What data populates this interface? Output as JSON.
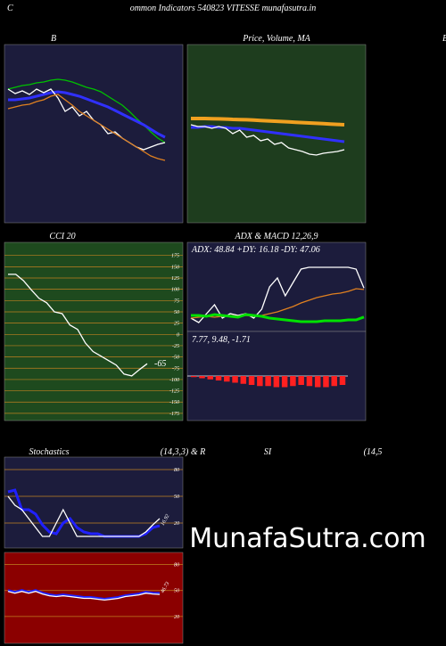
{
  "header": {
    "letter": "C",
    "title": "ommon  Indicators 540823 VITESSE munafasutra.in",
    "right_letter": "B",
    "watermark": "MunafaSutra.com"
  },
  "chart_data": [
    {
      "type": "line",
      "title": "B",
      "background": "#1c1c3c",
      "ylim": [
        0,
        100
      ],
      "series": [
        {
          "name": "ma-long",
          "color": "#00c000",
          "values": [
            75,
            76,
            77,
            77.5,
            78.5,
            79,
            80,
            80.5,
            80,
            79,
            77.5,
            76,
            75,
            73.5,
            71,
            68.5,
            66,
            62.5,
            58.5,
            55,
            51,
            47.5,
            45
          ]
        },
        {
          "name": "ma-mid",
          "color": "#3030ff",
          "values": [
            69,
            69,
            69.5,
            70,
            71,
            72,
            73,
            73.5,
            73,
            72,
            71,
            69.5,
            68,
            66.5,
            65,
            63,
            61,
            59,
            57,
            55,
            52.5,
            50,
            48
          ]
        },
        {
          "name": "price",
          "color": "#ffffff",
          "values": [
            75,
            72.5,
            74,
            72,
            75,
            73,
            75,
            70,
            62.5,
            65,
            60,
            62.5,
            57.5,
            55,
            50,
            51,
            47.5,
            45,
            42.5,
            41,
            42.5,
            44,
            45
          ]
        },
        {
          "name": "ma-short",
          "color": "#e08020",
          "values": [
            64,
            65,
            66,
            66.5,
            68,
            69,
            71,
            72,
            69,
            66,
            62.5,
            60,
            57.5,
            55,
            52.5,
            50,
            47.5,
            45,
            42.5,
            40,
            37.5,
            36,
            35
          ]
        }
      ]
    },
    {
      "type": "line",
      "title": "Price,  Volume,  MA",
      "background": "#1e3d1e",
      "ylim": [
        0,
        100
      ],
      "series": [
        {
          "name": "band-upper",
          "color": "#f0a020",
          "values": [
            58.5,
            58.5,
            58.5,
            58.4,
            58.3,
            58.2,
            58,
            57.9,
            57.8,
            57.6,
            57.4,
            57.2,
            57,
            56.8,
            56.6,
            56.4,
            56.2,
            56,
            55.8,
            55.6,
            55.4,
            55.2,
            55
          ]
        },
        {
          "name": "ma",
          "color": "#3030ff",
          "values": [
            53.5,
            53.5,
            54,
            54,
            53.5,
            53.5,
            53,
            53,
            52.5,
            52,
            51.5,
            51,
            50.5,
            50,
            49.5,
            49,
            48.5,
            48,
            47.5,
            47,
            46.5,
            46,
            45.5
          ]
        },
        {
          "name": "close",
          "color": "#ffffff",
          "values": [
            55,
            54,
            54,
            53,
            54,
            53,
            50,
            52,
            48,
            49,
            46,
            47,
            44,
            45,
            42,
            41,
            40,
            38.5,
            38,
            39,
            39.5,
            40,
            41
          ]
        }
      ]
    },
    {
      "type": "line",
      "title": "CCI 20",
      "background": "#1e4a1e",
      "ylim": [
        -191,
        204
      ],
      "yticks": [
        175,
        150,
        125,
        100,
        75,
        50,
        25,
        0,
        -25,
        -50,
        -75,
        -100,
        -125,
        -150,
        -175
      ],
      "grid": true,
      "series": [
        {
          "name": "cci",
          "color": "#ffffff",
          "values": [
            133,
            133,
            119,
            99,
            80,
            70,
            50,
            46,
            21,
            11,
            -19,
            -38,
            -48,
            -58,
            -68,
            -88,
            -92,
            -78,
            -65
          ]
        }
      ]
    },
    {
      "type": "line",
      "title": "ADX  & MACD 12,26,9",
      "subtitle": "ADX: 48.84  +DY: 16.18  -DY: 47.06",
      "background": "#1c1c3c",
      "ylim": [
        0,
        100
      ],
      "series": [
        {
          "name": "adx",
          "color": "#ffffff",
          "values": [
            15,
            10,
            20,
            30,
            15,
            20,
            18,
            20,
            15,
            25,
            50,
            60,
            40,
            55,
            70,
            72,
            72,
            72,
            72,
            72,
            72,
            70,
            48.84
          ]
        },
        {
          "name": "minus-dy",
          "color": "#e08020",
          "values": [
            15,
            16,
            17,
            16,
            17,
            18,
            17,
            18,
            17,
            18,
            20,
            22,
            25,
            28,
            32,
            35,
            38,
            40,
            42,
            43,
            45,
            48,
            47.06
          ]
        },
        {
          "name": "plus-dy",
          "color": "#00e000",
          "values": [
            18,
            18,
            17,
            19,
            18,
            17,
            16,
            19,
            18,
            17,
            15,
            14,
            13,
            12,
            11,
            11,
            11,
            12,
            12,
            12,
            13,
            13,
            16.18
          ]
        }
      ]
    },
    {
      "type": "bar",
      "title": "7.77,  9.48,  -1.71",
      "background": "#1c1c3c",
      "ylim": [
        -20,
        20
      ],
      "color": "#ff2020",
      "values": [
        -0.5,
        -1,
        -1.5,
        -2,
        -2.5,
        -3,
        -3.5,
        -4,
        -4.5,
        -4.5,
        -5,
        -5,
        -4.5,
        -4,
        -4.5,
        -5,
        -5,
        -4.5,
        -4
      ]
    },
    {
      "type": "line",
      "title": "Stochastics",
      "subtitle": "(14,3,3) & R",
      "background": "#1c1c3c",
      "ylim": [
        -8,
        94
      ],
      "yticks": [
        80,
        50,
        20
      ],
      "grid": true,
      "series": [
        {
          "name": "k",
          "color": "#2020ff",
          "values": [
            55,
            57,
            35,
            35,
            30,
            18,
            10,
            8,
            20,
            25,
            15,
            10,
            8,
            8,
            5,
            5,
            5,
            5,
            5,
            5,
            8,
            15,
            16.92
          ]
        },
        {
          "name": "d",
          "color": "#ffffff",
          "values": [
            50,
            40,
            35,
            25,
            15,
            5,
            5,
            20,
            35,
            20,
            5,
            5,
            5,
            5,
            5,
            5,
            5,
            5,
            5,
            5,
            10,
            18,
            25
          ]
        }
      ]
    },
    {
      "type": "line",
      "title": "SI",
      "subtitle": "(14,5",
      "background": "#8b0000",
      "ylim": [
        -11,
        94
      ],
      "yticks": [
        80,
        50,
        20
      ],
      "grid": true,
      "series": [
        {
          "name": "rsi",
          "color": "#2020ff",
          "values": [
            50,
            48,
            50,
            48,
            50,
            47,
            45,
            44,
            45,
            44,
            43,
            42,
            42,
            41,
            40,
            41,
            42,
            44,
            45,
            46,
            48,
            47,
            46.73
          ]
        },
        {
          "name": "rsi-signal",
          "color": "#ffffff",
          "values": [
            49,
            47,
            49,
            47,
            49,
            46,
            44,
            43,
            44,
            43,
            42,
            41,
            41,
            40,
            39,
            40,
            41,
            43,
            44,
            45,
            47,
            46,
            45.5
          ]
        }
      ]
    }
  ]
}
